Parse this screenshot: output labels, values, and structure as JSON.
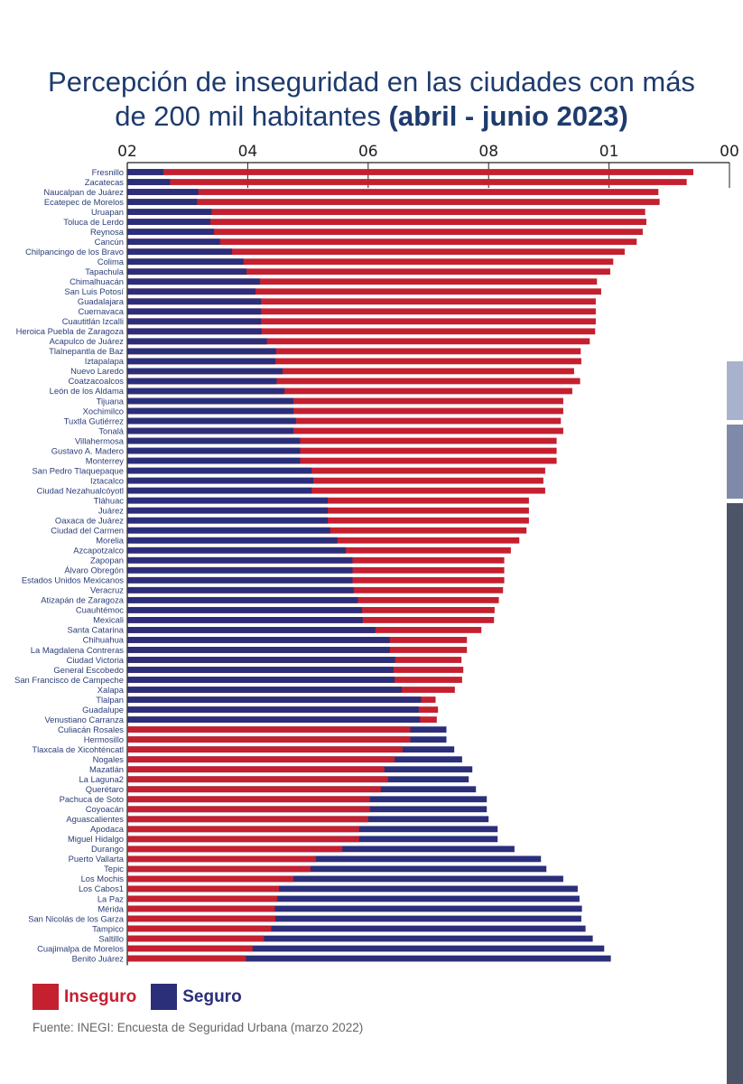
{
  "title": {
    "line1": "Percepción de inseguridad en las ciudades con más",
    "line2_normal": "de 200 mil habitantes ",
    "line2_bold": "(abril - junio 2023)"
  },
  "colors": {
    "inseguro": "#c42030",
    "seguro": "#2b2f7a",
    "title": "#1e3b6e",
    "side_panel_1": "#a8b2cc",
    "side_panel_2": "#7f8aa8",
    "side_panel_3": "#4d5468"
  },
  "legend": {
    "inseguro": "Inseguro",
    "seguro": "Seguro"
  },
  "source": "Fuente: INEGI: Encuesta de Seguridad Urbana (marzo 2022)",
  "chart_data": {
    "type": "bar",
    "orientation": "horizontal",
    "stacked": true,
    "xlim": [
      0,
      100
    ],
    "x_ticks": [
      0,
      20,
      40,
      60,
      80,
      100
    ],
    "x_tick_labels": [
      "02",
      "04",
      "06",
      "08",
      "01",
      "00"
    ],
    "x_axis_position": "top",
    "grid": false,
    "legend_position": "bottom-left",
    "categories": [
      "Fresnillo",
      "Zacatecas",
      "Naucalpan de Juárez",
      "Ecatepec de Morelos",
      "Uruapan",
      "Toluca de Lerdo",
      "Reynosa",
      "Cancún",
      "Chilpancingo de los Bravo",
      "Colima",
      "Tapachula",
      "Chimalhuacán",
      "San Luis Potosí",
      "Guadalajara",
      "Cuernavaca",
      "Cuautitlán Izcalli",
      "Heroica Puebla de Zaragoza",
      "Acapulco de Juárez",
      "Tlalnepantla de Baz",
      "Iztapalapa",
      "Nuevo Laredo",
      "Coatzacoalcos",
      "León de los Aldama",
      "Tijuana",
      "Xochimilco",
      "Tuxtla Gutiérrez",
      "Tonalá",
      "Villahermosa",
      "Gustavo A. Madero",
      "Monterrey",
      "San Pedro Tlaquepaque",
      "Iztacalco",
      "Ciudad Nezahualcóyotl",
      "Tláhuac",
      "Juárez",
      "Oaxaca de Juárez",
      "Ciudad del Carmen",
      "Morelia",
      "Azcapotzalco",
      "Zapopan",
      "Álvaro Obregón",
      "Estados Unidos Mexicanos",
      "Veracruz",
      "Atizapán de Zaragoza",
      "Cuauhtémoc",
      "Mexicali",
      "Santa Catarina",
      "Chihuahua",
      "La Magdalena Contreras",
      "Ciudad Victoria",
      "General Escobedo",
      "San Francisco de Campeche",
      "Xalapa",
      "Tlalpan",
      "Guadalupe",
      "Venustiano Carranza",
      "Culiacán Rosales",
      "Hermosillo",
      "Tlaxcala de Xicohténcatl",
      "Nogales",
      "Mazatlán",
      "La Laguna2",
      "Querétaro",
      "Pachuca de Soto",
      "Coyoacán",
      "Aguascalientes",
      "Apodaca",
      "Miguel Hidalgo",
      "Durango",
      "Puerto Vallarta",
      "Tepic",
      "Los Mochis",
      "Los Cabos1",
      "La Paz",
      "Mérida",
      "San Nicolás de los Garza",
      "Tampico",
      "Saltillo",
      "Cuajimalpa de Morelos",
      "Benito Juárez"
    ],
    "series": [
      {
        "name": "Inseguro",
        "values": [
          94.0,
          92.9,
          88.2,
          88.4,
          86.0,
          86.2,
          85.6,
          84.6,
          82.6,
          80.7,
          80.2,
          78.0,
          78.7,
          77.8,
          77.8,
          77.8,
          77.7,
          76.8,
          75.3,
          75.4,
          74.2,
          75.2,
          73.9,
          72.4,
          72.4,
          72.0,
          72.4,
          71.3,
          71.3,
          71.3,
          69.4,
          69.1,
          69.4,
          66.7,
          66.7,
          66.7,
          66.3,
          65.1,
          63.7,
          62.6,
          62.6,
          62.6,
          62.4,
          61.7,
          61.0,
          60.9,
          58.8,
          56.4,
          56.4,
          55.5,
          55.8,
          55.6,
          54.4,
          51.2,
          51.6,
          51.4,
          47.0,
          47.0,
          45.7,
          44.4,
          42.7,
          43.3,
          42.1,
          40.3,
          40.3,
          40.0,
          38.5,
          38.5,
          35.7,
          31.3,
          30.4,
          27.6,
          25.2,
          24.9,
          24.5,
          24.6,
          23.9,
          22.7,
          20.8,
          19.7
        ]
      },
      {
        "name": "Seguro",
        "values": [
          6.0,
          7.1,
          11.8,
          11.6,
          14.0,
          13.8,
          14.4,
          15.4,
          17.4,
          19.3,
          19.8,
          22.0,
          21.3,
          22.2,
          22.2,
          22.2,
          22.3,
          23.2,
          24.7,
          24.6,
          25.8,
          24.8,
          26.1,
          27.6,
          27.6,
          28.0,
          27.6,
          28.7,
          28.7,
          28.7,
          30.6,
          30.9,
          30.6,
          33.3,
          33.3,
          33.3,
          33.7,
          34.9,
          36.3,
          37.4,
          37.4,
          37.4,
          37.6,
          38.3,
          39.0,
          39.1,
          41.2,
          43.6,
          43.6,
          44.5,
          44.2,
          44.4,
          45.6,
          48.8,
          48.4,
          48.6,
          53.0,
          53.0,
          54.3,
          55.6,
          57.3,
          56.7,
          57.9,
          59.7,
          59.7,
          60.0,
          61.5,
          61.5,
          64.3,
          68.7,
          69.6,
          72.4,
          74.8,
          75.1,
          75.5,
          75.4,
          76.1,
          77.3,
          79.2,
          80.3
        ]
      }
    ]
  }
}
